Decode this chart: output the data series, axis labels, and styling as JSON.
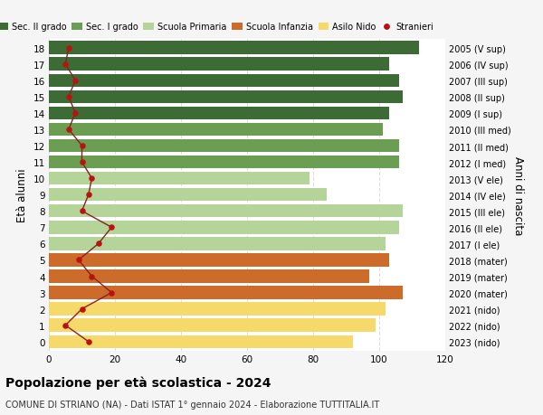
{
  "ages": [
    18,
    17,
    16,
    15,
    14,
    13,
    12,
    11,
    10,
    9,
    8,
    7,
    6,
    5,
    4,
    3,
    2,
    1,
    0
  ],
  "bar_values": [
    112,
    103,
    106,
    107,
    103,
    101,
    106,
    106,
    79,
    84,
    107,
    106,
    102,
    103,
    97,
    107,
    102,
    99,
    92
  ],
  "stranieri_values": [
    6,
    5,
    8,
    6,
    8,
    6,
    10,
    10,
    13,
    12,
    10,
    19,
    15,
    9,
    13,
    19,
    10,
    5,
    12
  ],
  "right_labels": [
    "2005 (V sup)",
    "2006 (IV sup)",
    "2007 (III sup)",
    "2008 (II sup)",
    "2009 (I sup)",
    "2010 (III med)",
    "2011 (II med)",
    "2012 (I med)",
    "2013 (V ele)",
    "2014 (IV ele)",
    "2015 (III ele)",
    "2016 (II ele)",
    "2017 (I ele)",
    "2018 (mater)",
    "2019 (mater)",
    "2020 (mater)",
    "2021 (nido)",
    "2022 (nido)",
    "2023 (nido)"
  ],
  "bar_colors": [
    "#3d6b35",
    "#3d6b35",
    "#3d6b35",
    "#3d6b35",
    "#3d6b35",
    "#6b9e52",
    "#6b9e52",
    "#6b9e52",
    "#b5d49a",
    "#b5d49a",
    "#b5d49a",
    "#b5d49a",
    "#b5d49a",
    "#cc6b2a",
    "#cc6b2a",
    "#cc6b2a",
    "#f5d96b",
    "#f5d96b",
    "#f5d96b"
  ],
  "legend_labels": [
    "Sec. II grado",
    "Sec. I grado",
    "Scuola Primaria",
    "Scuola Infanzia",
    "Asilo Nido",
    "Stranieri"
  ],
  "legend_colors": [
    "#3d6b35",
    "#6b9e52",
    "#b5d49a",
    "#cc6b2a",
    "#f5d96b",
    "#cc1111"
  ],
  "title": "Popolazione per età scolastica - 2024",
  "subtitle": "COMUNE DI STRIANO (NA) - Dati ISTAT 1° gennaio 2024 - Elaborazione TUTTITALIA.IT",
  "ylabel": "Età alunni",
  "right_ylabel": "Anni di nascita",
  "xlim": [
    0,
    120
  ],
  "xticks": [
    0,
    20,
    40,
    60,
    80,
    100,
    120
  ],
  "bg_color": "#f5f5f5",
  "bar_bg_color": "#ffffff",
  "stranieri_color": "#bb1111",
  "stranieri_line_color": "#882222",
  "grid_color": "#dddddd"
}
